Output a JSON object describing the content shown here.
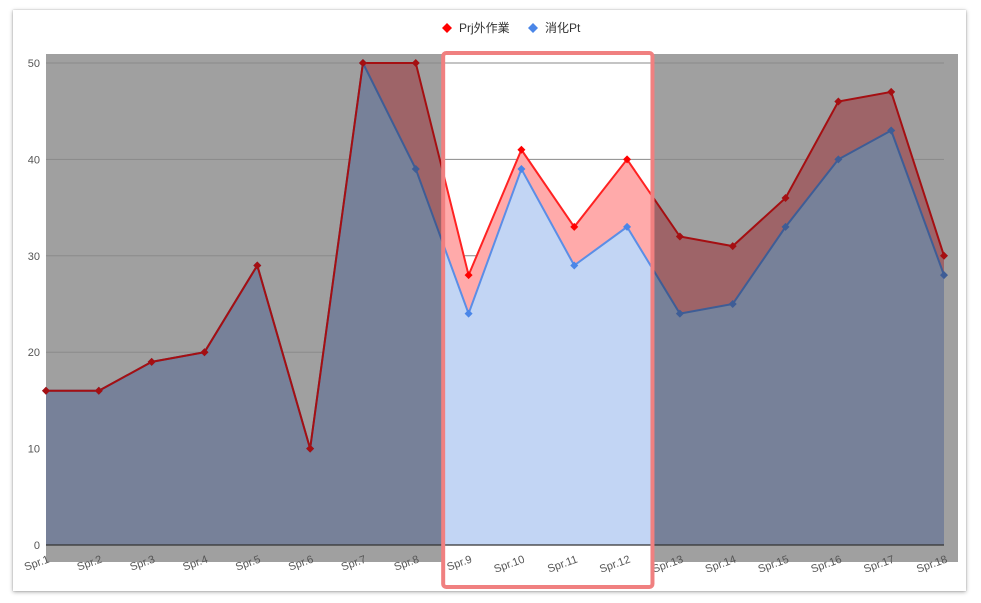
{
  "chart_data": {
    "type": "area",
    "categories": [
      "Spr.1",
      "Spr.2",
      "Spr.3",
      "Spr.4",
      "Spr.5",
      "Spr.6",
      "Spr.7",
      "Spr.8",
      "Spr.9",
      "Spr.10",
      "Spr.11",
      "Spr.12",
      "Spr.13",
      "Spr.14",
      "Spr.15",
      "Spr.16",
      "Spr.17",
      "Spr.18"
    ],
    "series": [
      {
        "name": "Prj外作業",
        "color": "#ff0000",
        "values": [
          16,
          16,
          19,
          20,
          29,
          10,
          50,
          50,
          28,
          41,
          33,
          40,
          32,
          31,
          36,
          46,
          47,
          30
        ]
      },
      {
        "name": "消化Pt",
        "color": "#4a86e8",
        "values": [
          16,
          16,
          19,
          20,
          29,
          10,
          50,
          39,
          24,
          39,
          29,
          33,
          24,
          25,
          33,
          40,
          43,
          28
        ]
      }
    ],
    "ylim": [
      0,
      50
    ],
    "yticks": [
      0,
      10,
      20,
      30,
      40,
      50
    ],
    "grid": true,
    "legend": "top-center",
    "highlight": {
      "from": "Spr.9",
      "to": "Spr.12",
      "color": "#f08080"
    },
    "dimmed_background": "#a0a0a0"
  }
}
